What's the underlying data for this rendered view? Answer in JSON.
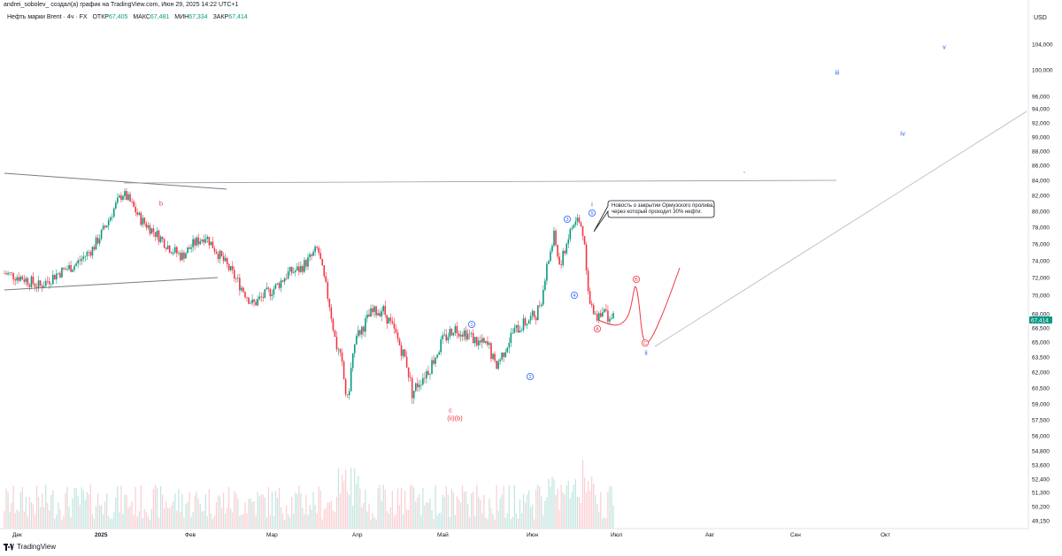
{
  "header": {
    "attribution": "andrei_sobolev_ создал(а) график на TradingView.com, Июн 29, 2025 14:22 UTC+1",
    "symbol": "Нефть марки Brent · 4ч · FX",
    "open_label": "ОТКР",
    "open": "67,405",
    "high_label": "МАКС",
    "high": "67,481",
    "low_label": "МИН",
    "low": "67,334",
    "close_label": "ЗАКР",
    "close": "67,414"
  },
  "footer": {
    "brand": "TradingView"
  },
  "colors": {
    "up": "#089981",
    "down": "#f23645",
    "price_tag": "#089981",
    "wave_blue": "#2962ff",
    "wave_red": "#f23645",
    "text": "#131722"
  },
  "chart_data": {
    "type": "candlestick",
    "currency": "USD",
    "current_price": "67,414",
    "y_ticks": [
      "104,000",
      "100,000",
      "96,000",
      "94,000",
      "92,000",
      "90,000",
      "88,000",
      "86,000",
      "84,000",
      "82,000",
      "80,000",
      "78,000",
      "76,000",
      "74,000",
      "72,000",
      "70,000",
      "68,000",
      "66,500",
      "65,000",
      "63,500",
      "62,000",
      "60,500",
      "59,000",
      "57,500",
      "56,000",
      "54,800",
      "53,600",
      "52,400",
      "51,300",
      "50,200",
      "49,150"
    ],
    "scale": "log",
    "x_ticks": [
      "Дек",
      "2025",
      "Фев",
      "Мар",
      "Апр",
      "Май",
      "Июн",
      "Июл",
      "Авг",
      "Сен",
      "Окт"
    ],
    "price_path": [
      [
        0,
        72.5
      ],
      [
        3,
        72.0
      ],
      [
        6,
        71.0
      ],
      [
        9,
        72.5
      ],
      [
        12,
        73.5
      ],
      [
        15,
        75.5
      ],
      [
        17,
        78
      ],
      [
        19,
        81
      ],
      [
        20,
        82.3
      ],
      [
        21,
        81.5
      ],
      [
        23,
        79
      ],
      [
        26,
        77
      ],
      [
        28,
        75.5
      ],
      [
        30,
        74.5
      ],
      [
        32,
        76
      ],
      [
        34,
        77
      ],
      [
        36,
        75
      ],
      [
        38,
        73
      ],
      [
        40,
        71
      ],
      [
        42,
        69
      ],
      [
        44,
        70
      ],
      [
        46,
        71
      ],
      [
        48,
        72.5
      ],
      [
        50,
        73
      ],
      [
        52,
        74.5
      ],
      [
        53,
        75.5
      ],
      [
        54,
        72
      ],
      [
        55,
        69
      ],
      [
        56,
        65
      ],
      [
        57,
        63
      ],
      [
        58,
        59
      ],
      [
        59,
        64
      ],
      [
        60,
        66
      ],
      [
        62,
        68
      ],
      [
        64,
        68.5
      ],
      [
        66,
        66
      ],
      [
        68,
        63
      ],
      [
        69,
        60
      ],
      [
        70,
        61
      ],
      [
        72,
        62.5
      ],
      [
        74,
        65
      ],
      [
        76,
        66.5
      ],
      [
        78,
        66
      ],
      [
        80,
        65
      ],
      [
        82,
        64.5
      ],
      [
        83,
        62.5
      ],
      [
        84,
        63.5
      ],
      [
        86,
        66
      ],
      [
        88,
        67
      ],
      [
        90,
        68
      ],
      [
        91,
        70
      ],
      [
        92,
        74
      ],
      [
        93,
        77
      ],
      [
        94,
        73
      ],
      [
        95,
        76
      ],
      [
        96,
        78
      ],
      [
        97,
        79
      ],
      [
        98,
        77
      ],
      [
        99,
        69
      ],
      [
        100,
        67.5
      ],
      [
        101,
        68.5
      ],
      [
        102,
        67.8
      ],
      [
        103,
        67.4
      ]
    ],
    "volume_note": "volume histogram below price",
    "wave_labels": [
      {
        "label": "b",
        "color": "red"
      },
      {
        "label": "c",
        "color": "red"
      },
      {
        "label": "(ii)(b)",
        "color": "red"
      },
      {
        "label": "1",
        "color": "blue"
      },
      {
        "label": "2",
        "color": "blue"
      },
      {
        "label": "3",
        "color": "blue"
      },
      {
        "label": "4",
        "color": "blue"
      },
      {
        "label": "5",
        "color": "blue"
      },
      {
        "label": "i",
        "color": "blue"
      },
      {
        "label": "A",
        "color": "red"
      },
      {
        "label": "B",
        "color": "red"
      },
      {
        "label": "C",
        "color": "red"
      },
      {
        "label": "ii",
        "color": "blue"
      },
      {
        "label": "iii",
        "color": "blue"
      },
      {
        "label": "iv",
        "color": "blue"
      },
      {
        "label": "v",
        "color": "blue"
      }
    ],
    "annotation": "Новость о закрытии Ормузского пролива, через который проходит 30% нефти."
  }
}
